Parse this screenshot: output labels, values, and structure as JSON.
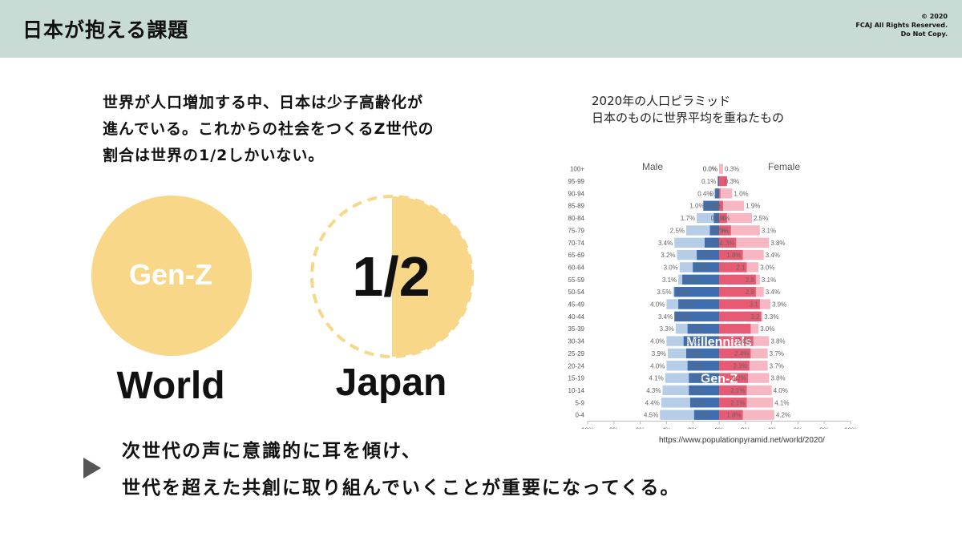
{
  "header": {
    "title": "日本が抱える課題",
    "copyright": [
      "© 2020",
      "FCAJ All Rights Reserved.",
      "Do Not Copy."
    ]
  },
  "intro_lines": [
    "世界が人口増加する中、日本は少子高齢化が",
    "進んでいる。これからの社会をつくるZ世代の",
    "割合は世界の1/2しかいない。"
  ],
  "comparison": {
    "world_circle_label": "Gen-Z",
    "world_label": "World",
    "ratio_label": "1/2",
    "japan_label": "Japan",
    "japan_share": 0.5,
    "circle_color": "#f8d888"
  },
  "chart_caption": [
    "2020年の人口ピラミッド",
    "日本のものに世界平均を重ねたもの"
  ],
  "source": "https://www.populationpyramid.net/world/2020/",
  "bottom_lines": [
    "次世代の声に意識的に耳を傾け、",
    "世代を超えた共創に取り組んでいくことが重要になってくる。"
  ],
  "chart_data": {
    "type": "bar",
    "orientation": "horizontal-pyramid",
    "categories": [
      "100+",
      "95-99",
      "90-94",
      "85-89",
      "80-84",
      "75-79",
      "70-74",
      "65-69",
      "60-64",
      "55-59",
      "50-54",
      "45-49",
      "40-44",
      "35-39",
      "30-34",
      "25-29",
      "20-24",
      "15-19",
      "10-14",
      "5-9",
      "0-4"
    ],
    "legend": [
      "Male",
      "Female"
    ],
    "x_ticks": [
      "10%",
      "8%",
      "6%",
      "4%",
      "2%",
      "0%",
      "2%",
      "4%",
      "6%",
      "8%",
      "10%"
    ],
    "xlim": [
      -10,
      10
    ],
    "series": [
      {
        "name": "Male",
        "side": "left",
        "layer": "world",
        "color": "#b5cde6",
        "values": [
          0.0,
          0.1,
          0.4,
          1.0,
          1.7,
          2.5,
          3.4,
          3.2,
          3.0,
          3.1,
          3.5,
          4.0,
          3.4,
          3.3,
          4.0,
          3.9,
          4.0,
          4.1,
          4.3,
          4.4,
          4.5
        ],
        "labels": [
          "0.0%",
          "0.1%",
          "0.4%",
          "1.0%",
          "1.7%",
          "2.5%",
          "3.4%",
          "3.2%",
          "3.0%",
          "3.1%",
          "3.5%",
          "4.0%",
          "3.4%",
          "3.3%",
          "4.0%",
          "3.9%",
          "4.0%",
          "4.1%",
          "4.3%",
          "4.4%",
          "4.5%"
        ]
      },
      {
        "name": "Male",
        "side": "left",
        "layer": "japan",
        "color": "#3e6eb0",
        "values": [
          0.0,
          0.1,
          0.3,
          1.2,
          0.4,
          0.7,
          1.1,
          1.7,
          2.0,
          2.8,
          3.4,
          3.1,
          3.4,
          2.4,
          2.7,
          2.5,
          2.4,
          2.3,
          2.3,
          2.2,
          1.9
        ],
        "labels": [
          "",
          "",
          "",
          "1.2%",
          "0.4%",
          "0.7%",
          "1.1%",
          "1.7%",
          "2.0%",
          "2.8%",
          "3.4%",
          "3.1%",
          "3.4%",
          "2.4%",
          "2.7%",
          "2.5%",
          "2.4%",
          "2.3%",
          "2.3%",
          "2.2%",
          "1.9%"
        ]
      },
      {
        "name": "Female",
        "side": "right",
        "layer": "world",
        "color": "#f6b7c3",
        "values": [
          0.3,
          0.3,
          1.0,
          1.9,
          2.5,
          3.1,
          3.8,
          3.4,
          3.0,
          3.1,
          3.4,
          3.9,
          3.3,
          3.0,
          3.8,
          3.7,
          3.7,
          3.8,
          4.0,
          4.1,
          4.2
        ],
        "labels": [
          "0.3%",
          "0.3%",
          "1.0%",
          "1.9%",
          "2.5%",
          "3.1%",
          "3.8%",
          "3.4%",
          "3.0%",
          "3.1%",
          "3.4%",
          "3.9%",
          "3.3%",
          "3.0%",
          "3.8%",
          "3.7%",
          "3.7%",
          "3.8%",
          "4.0%",
          "4.1%",
          "4.2%"
        ]
      },
      {
        "name": "Female",
        "side": "right",
        "layer": "japan",
        "color": "#e65b73",
        "values": [
          0.0,
          0.6,
          0.1,
          0.3,
          0.6,
          0.9,
          1.3,
          1.8,
          2.1,
          2.8,
          2.8,
          3.1,
          3.2,
          2.4,
          2.6,
          2.4,
          2.3,
          2.2,
          2.1,
          2.1,
          1.8
        ],
        "labels": [
          "0.0%",
          "",
          "0.1",
          "0.3%",
          "0.6%",
          "0.9%",
          "1.3%",
          "1.8%",
          "2.1",
          "2.8",
          "2.8",
          "3.1",
          "3.2",
          "",
          "2.6%",
          "2.4%",
          "2.3%",
          "2.2%",
          "2.1%",
          "2.1%",
          "1.8%"
        ]
      }
    ],
    "bands": [
      {
        "label": "Millennials",
        "from": "25-29",
        "to": "35-39",
        "color": "#c9dfde"
      },
      {
        "label": "Gen-Z",
        "from": "10-14",
        "to": "20-24",
        "color": "#fbe7b4"
      }
    ]
  }
}
